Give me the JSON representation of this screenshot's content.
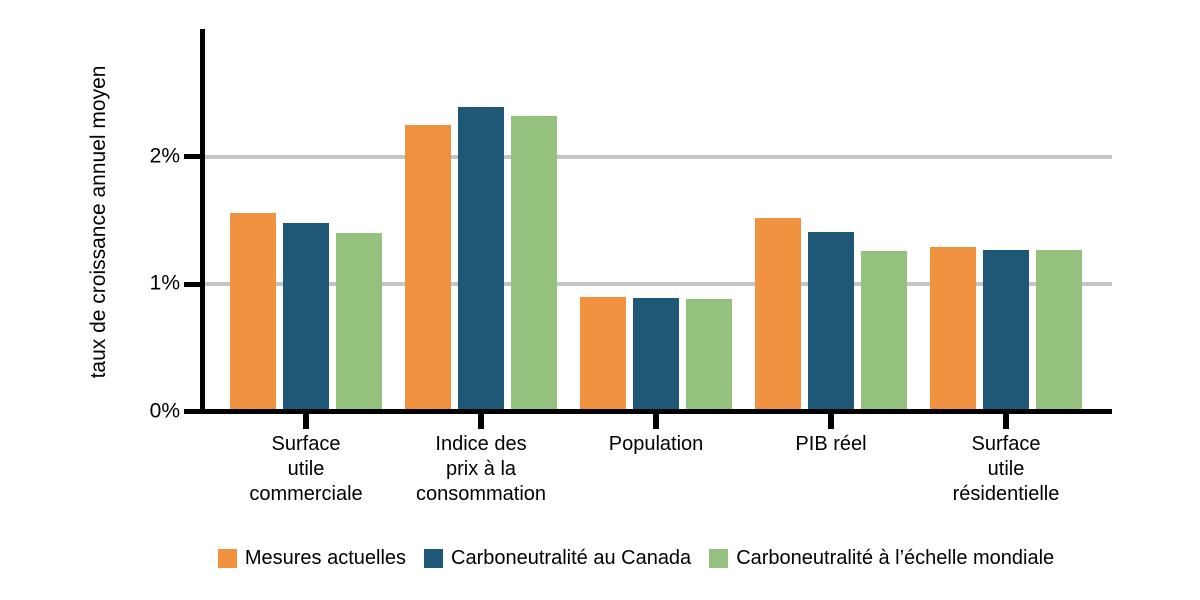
{
  "chart_data": {
    "type": "bar",
    "title": "",
    "xlabel": "",
    "ylabel": "taux de croissance annuel moyen",
    "ylim": [
      0,
      3
    ],
    "grid": "horizontal",
    "legend_position": "bottom",
    "y_ticks": [
      {
        "label": "0%",
        "value": 0
      },
      {
        "label": "1%",
        "value": 1
      },
      {
        "label": "2%",
        "value": 2
      }
    ],
    "categories": [
      "Surface utile commerciale",
      "Indice des prix à la consommation",
      "Population",
      "PIB réel",
      "Surface utile résidentielle"
    ],
    "category_label_lines": [
      [
        "Surface",
        "utile",
        "commerciale"
      ],
      [
        "Indice des",
        "prix à la",
        "consommation"
      ],
      [
        "Population"
      ],
      [
        "PIB réel"
      ],
      [
        "Surface",
        "utile",
        "résidentielle"
      ]
    ],
    "series": [
      {
        "name": "Mesures actuelles",
        "color": "#F0923F",
        "values": [
          1.56,
          2.25,
          0.9,
          1.52,
          1.29
        ]
      },
      {
        "name": "Carboneutralité au Canada",
        "color": "#1F5777",
        "values": [
          1.48,
          2.39,
          0.89,
          1.41,
          1.27
        ]
      },
      {
        "name": "Carboneutralité à l’échelle mondiale",
        "color": "#94C17E",
        "values": [
          1.4,
          2.32,
          0.88,
          1.26,
          1.27
        ]
      }
    ]
  },
  "colors": {
    "axis": "#000000",
    "gridline": "#C4C4C4",
    "text": "#000000",
    "background": "#FFFFFF"
  }
}
